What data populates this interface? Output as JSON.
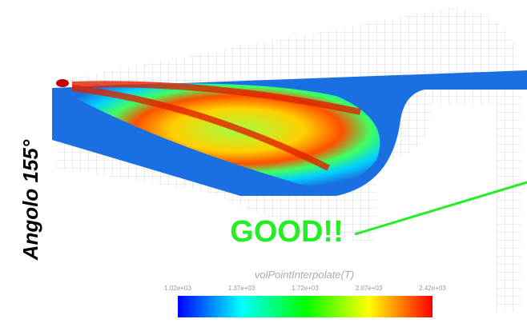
{
  "label": "Angolo  155°",
  "annotation": "GOOD!!",
  "colorbar": {
    "title": "volPointInterpolate(T)",
    "ticks": [
      "1.02e+03",
      "1.37e+03",
      "1.72e+03",
      "2.07e+03",
      "2.42e+03"
    ]
  }
}
